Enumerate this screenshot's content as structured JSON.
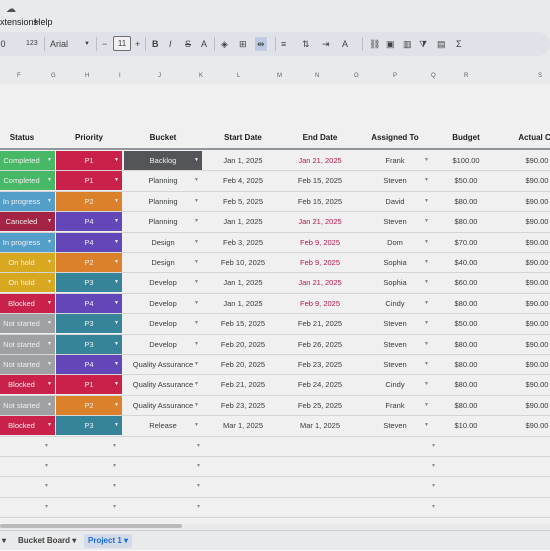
{
  "menubar": {
    "items": [
      "Extensions",
      "Help"
    ]
  },
  "toolbar": {
    "number_format": "123",
    "font_name": "Arial",
    "font_size": "11"
  },
  "column_letters": [
    "F",
    "G",
    "H",
    "I",
    "J",
    "K",
    "L",
    "M",
    "N",
    "O",
    "P",
    "Q",
    "R",
    "S"
  ],
  "headers": {
    "status": "Status",
    "priority": "Priority",
    "bucket": "Bucket",
    "start_date": "Start Date",
    "end_date": "End Date",
    "assigned_to": "Assigned To",
    "budget": "Budget",
    "actual_cost": "Actual Co"
  },
  "colors": {
    "Completed": "#4cc46c",
    "In progress": "#5aa9d6",
    "Canceled": "#b0264a",
    "On hold": "#e6b422",
    "Blocked": "#d7244f",
    "Not started": "#a8aaad",
    "P1": "#d7244f",
    "P2": "#e98a2f",
    "P3": "#3a8da4",
    "P4": "#6a4bc4",
    "Backlog": "#5a5b5e",
    "overdue": "#c2185b"
  },
  "rows": [
    {
      "status": "Completed",
      "priority": "P1",
      "bucket": "Backlog",
      "start": "Jan 1, 2025",
      "end": "Jan 21, 2025",
      "end_overdue": true,
      "assigned": "Frank",
      "budget": "$100.00",
      "actual": "$90.00"
    },
    {
      "status": "Completed",
      "priority": "P1",
      "bucket": "Planning",
      "start": "Feb 4, 2025",
      "end": "Feb 15, 2025",
      "end_overdue": false,
      "assigned": "Steven",
      "budget": "$50.00",
      "actual": "$90.00"
    },
    {
      "status": "In progress",
      "priority": "P2",
      "bucket": "Planning",
      "start": "Feb 5, 2025",
      "end": "Feb 15, 2025",
      "end_overdue": false,
      "assigned": "David",
      "budget": "$80.00",
      "actual": "$90.00"
    },
    {
      "status": "Canceled",
      "priority": "P4",
      "bucket": "Planning",
      "start": "Jan 1, 2025",
      "end": "Jan 21, 2025",
      "end_overdue": true,
      "assigned": "Steven",
      "budget": "$80.00",
      "actual": "$90.00"
    },
    {
      "status": "In progress",
      "priority": "P4",
      "bucket": "Design",
      "start": "Feb 3, 2025",
      "end": "Feb 9, 2025",
      "end_overdue": true,
      "assigned": "Dom",
      "budget": "$70.00",
      "actual": "$90.00"
    },
    {
      "status": "On hold",
      "priority": "P2",
      "bucket": "Design",
      "start": "Feb 10, 2025",
      "end": "Feb 9, 2025",
      "end_overdue": true,
      "assigned": "Sophia",
      "budget": "$40.00",
      "actual": "$90.00"
    },
    {
      "status": "On hold",
      "priority": "P3",
      "bucket": "Develop",
      "start": "Jan 1, 2025",
      "end": "Jan 21, 2025",
      "end_overdue": true,
      "assigned": "Sophia",
      "budget": "$60.00",
      "actual": "$90.00"
    },
    {
      "status": "Blocked",
      "priority": "P4",
      "bucket": "Develop",
      "start": "Jan 1, 2025",
      "end": "Feb 9, 2025",
      "end_overdue": true,
      "assigned": "Cindy",
      "budget": "$80.00",
      "actual": "$90.00"
    },
    {
      "status": "Not started",
      "priority": "P3",
      "bucket": "Develop",
      "start": "Feb 15, 2025",
      "end": "Feb 21, 2025",
      "end_overdue": false,
      "assigned": "Steven",
      "budget": "$50.00",
      "actual": "$90.00"
    },
    {
      "status": "Not started",
      "priority": "P3",
      "bucket": "Develop",
      "start": "Feb 20, 2025",
      "end": "Feb 26, 2025",
      "end_overdue": false,
      "assigned": "Steven",
      "budget": "$80.00",
      "actual": "$90.00"
    },
    {
      "status": "Not started",
      "priority": "P4",
      "bucket": "Quality Assurance",
      "start": "Feb 20, 2025",
      "end": "Feb 23, 2025",
      "end_overdue": false,
      "assigned": "Steven",
      "budget": "$80.00",
      "actual": "$90.00"
    },
    {
      "status": "Blocked",
      "priority": "P1",
      "bucket": "Quality Assurance",
      "start": "Feb 21, 2025",
      "end": "Feb 24, 2025",
      "end_overdue": false,
      "assigned": "Cindy",
      "budget": "$80.00",
      "actual": "$90.00"
    },
    {
      "status": "Not started",
      "priority": "P2",
      "bucket": "Quality Assurance",
      "start": "Feb 23, 2025",
      "end": "Feb 25, 2025",
      "end_overdue": false,
      "assigned": "Frank",
      "budget": "$80.00",
      "actual": "$90.00"
    },
    {
      "status": "Blocked",
      "priority": "P3",
      "bucket": "Release",
      "start": "Mar 1, 2025",
      "end": "Mar 1, 2025",
      "end_overdue": false,
      "assigned": "Steven",
      "budget": "$10.00",
      "actual": "$90.00"
    }
  ],
  "empty_rows": 4,
  "sheet_tabs": [
    {
      "label": "Bucket Board",
      "active": false
    },
    {
      "label": "Project 1",
      "active": true
    }
  ]
}
